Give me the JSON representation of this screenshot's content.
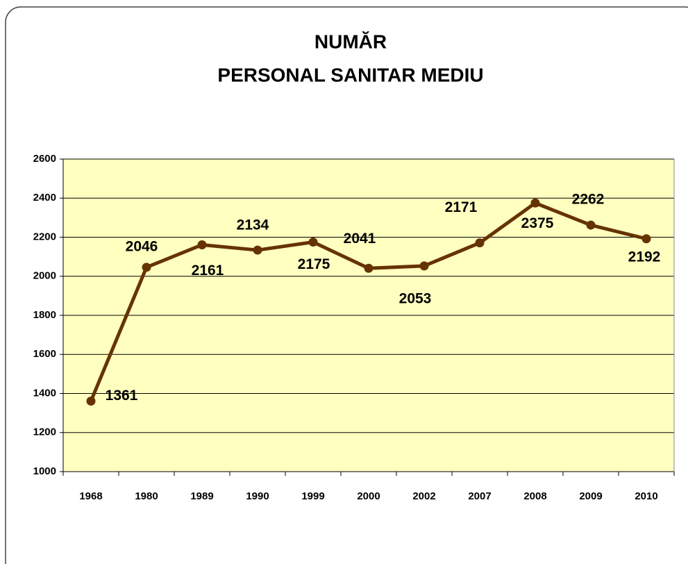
{
  "chart_data": {
    "type": "line",
    "title": [
      "NUMĂR",
      "PERSONAL SANITAR MEDIU"
    ],
    "categories": [
      "1968",
      "1980",
      "1989",
      "1990",
      "1999",
      "2000",
      "2002",
      "2007",
      "2008",
      "2009",
      "2010"
    ],
    "series": [
      {
        "color": "#663300",
        "values": [
          1361,
          2046,
          2161,
          2134,
          2175,
          2041,
          2053,
          2171,
          2375,
          2262,
          2192
        ]
      }
    ],
    "ylim": [
      1000,
      2600
    ],
    "yticks": [
      1000,
      1200,
      1400,
      1600,
      1800,
      2000,
      2200,
      2400,
      2600
    ],
    "grid": true,
    "background": "#ffffc0"
  }
}
